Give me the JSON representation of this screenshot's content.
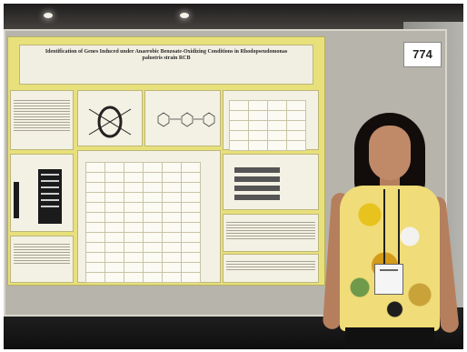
{
  "poster": {
    "title": "Identification of Genes Induced under Anaerobic Benzoate-Oxidizing Conditions in Rhodopseudomonas palustris strain RCB",
    "subtitle": ""
  },
  "booth_sign": {
    "number": "774"
  }
}
